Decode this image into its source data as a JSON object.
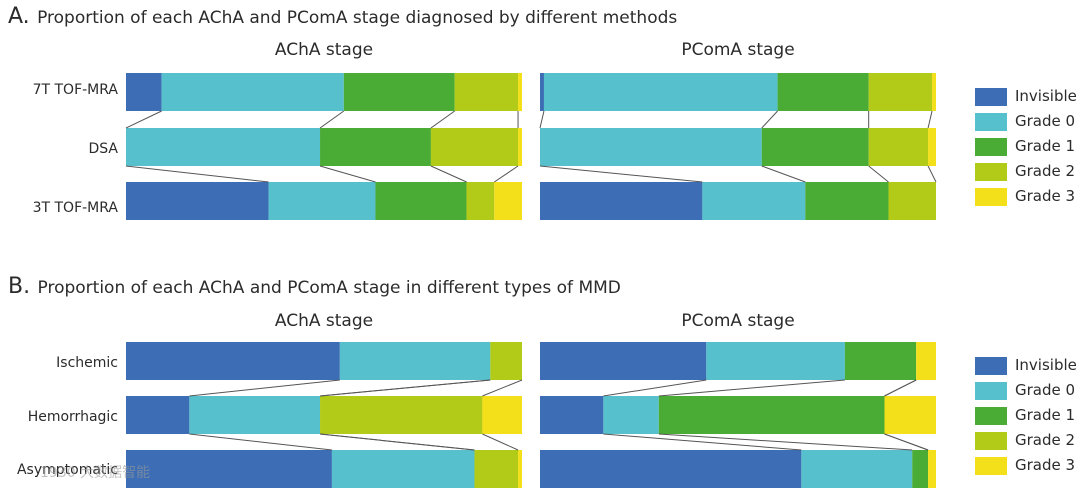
{
  "colors": {
    "Invisible": "#3d6db5",
    "Grade 0": "#56c0cc",
    "Grade 1": "#4aab35",
    "Grade 2": "#b1cb18",
    "Grade 3": "#f4e01a"
  },
  "panels": [
    {
      "letter": "A.",
      "title": "Proportion of each AChA and PComA stage diagnosed by different methods",
      "legend": [
        "Invisible",
        "Grade 0",
        "Grade 1",
        "Grade 2",
        "Grade 3"
      ]
    },
    {
      "letter": "B.",
      "title": "Proportion of each AChA and PComA stage in different types of MMD",
      "legend": [
        "Invisible",
        "Grade 0",
        "Grade 1",
        "Grade 2",
        "Grade 3"
      ]
    }
  ],
  "chart_data": [
    {
      "type": "bar",
      "orientation": "horizontal-stacked-100",
      "title": "AChA stage",
      "categories": [
        "7T TOF-MRA",
        "DSA",
        "3T TOF-MRA"
      ],
      "series": [
        {
          "name": "Invisible",
          "values": [
            9,
            0,
            36
          ]
        },
        {
          "name": "Grade 0",
          "values": [
            46,
            49,
            27
          ]
        },
        {
          "name": "Grade 1",
          "values": [
            28,
            28,
            23
          ]
        },
        {
          "name": "Grade 2",
          "values": [
            16,
            22,
            7
          ]
        },
        {
          "name": "Grade 3",
          "values": [
            1,
            1,
            7
          ]
        }
      ]
    },
    {
      "type": "bar",
      "orientation": "horizontal-stacked-100",
      "title": "PComA stage",
      "categories": [
        "7T TOF-MRA",
        "DSA",
        "3T TOF-MRA"
      ],
      "series": [
        {
          "name": "Invisible",
          "values": [
            1,
            0,
            41
          ]
        },
        {
          "name": "Grade 0",
          "values": [
            59,
            56,
            26
          ]
        },
        {
          "name": "Grade 1",
          "values": [
            23,
            27,
            21
          ]
        },
        {
          "name": "Grade 2",
          "values": [
            16,
            15,
            12
          ]
        },
        {
          "name": "Grade 3",
          "values": [
            1,
            2,
            0
          ]
        }
      ]
    },
    {
      "type": "bar",
      "orientation": "horizontal-stacked-100",
      "title": "AChA stage",
      "categories": [
        "Ischemic",
        "Hemorrhagic",
        "Asymptomatic"
      ],
      "series": [
        {
          "name": "Invisible",
          "values": [
            54,
            16,
            52
          ]
        },
        {
          "name": "Grade 0",
          "values": [
            38,
            33,
            36
          ]
        },
        {
          "name": "Grade 1",
          "values": [
            0,
            0,
            0
          ]
        },
        {
          "name": "Grade 2",
          "values": [
            8,
            41,
            11
          ]
        },
        {
          "name": "Grade 3",
          "values": [
            0,
            10,
            1
          ]
        }
      ]
    },
    {
      "type": "bar",
      "orientation": "horizontal-stacked-100",
      "title": "PComA stage",
      "categories": [
        "Ischemic",
        "Hemorrhagic",
        "Asymptomatic"
      ],
      "series": [
        {
          "name": "Invisible",
          "values": [
            42,
            16,
            66
          ]
        },
        {
          "name": "Grade 0",
          "values": [
            35,
            14,
            28
          ]
        },
        {
          "name": "Grade 1",
          "values": [
            18,
            57,
            4
          ]
        },
        {
          "name": "Grade 2",
          "values": [
            0,
            0,
            0
          ]
        },
        {
          "name": "Grade 3",
          "values": [
            5,
            13,
            2
          ]
        }
      ]
    }
  ],
  "watermark": "1930 大数据智能"
}
